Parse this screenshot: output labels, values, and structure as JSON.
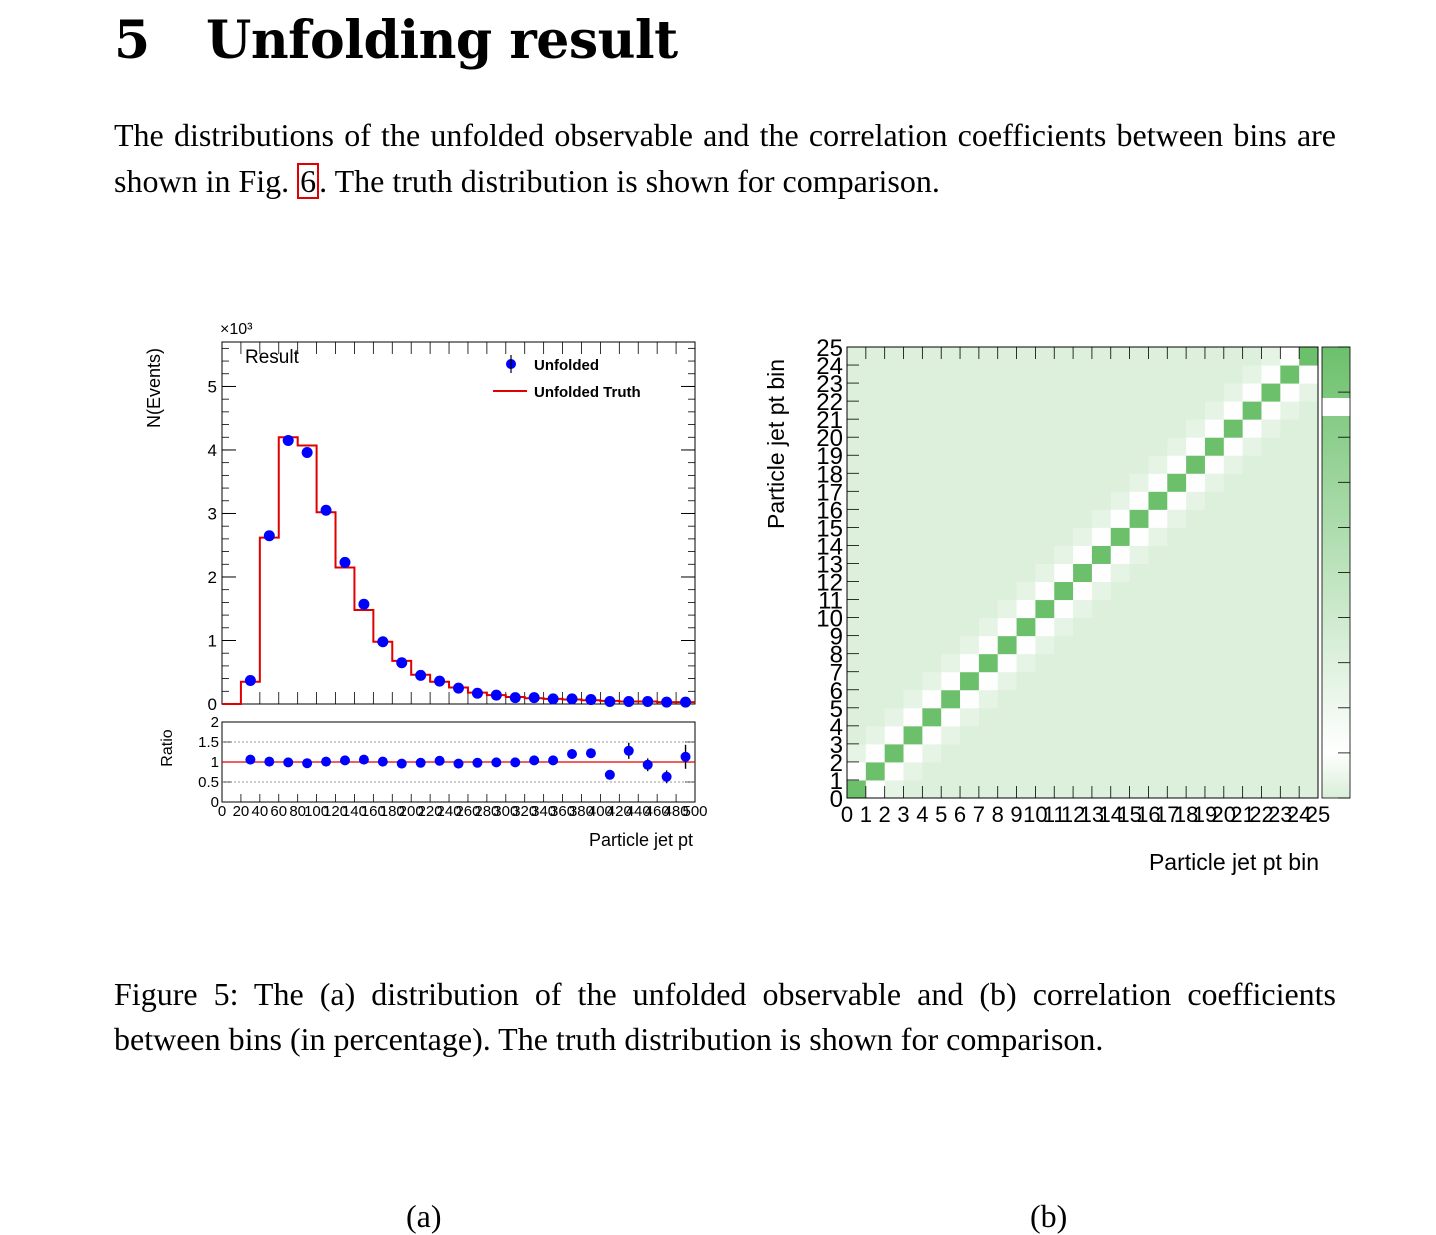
{
  "section": {
    "number": "5",
    "title": "Unfolding result"
  },
  "paragraph": {
    "before_ref": "The distributions of the unfolded observable and the correlation coefficients between bins are shown in Fig. ",
    "ref": "6",
    "after_ref": ". The truth distribution is shown for comparison."
  },
  "subcaptions": {
    "a": "(a)",
    "b": "(b)"
  },
  "caption": "Figure 5: The (a) distribution of the unfolded observable and (b) correlation coefficients between bins (in percentage). The truth distribution is shown for comparison.",
  "chart_data": [
    {
      "type": "line",
      "id": "distribution",
      "title": "Result",
      "ylabel": "N(Events)",
      "xlabel": "Particle jet pt",
      "y_multiplier_label": "×10³",
      "xlim": [
        0,
        500
      ],
      "ylim": [
        0,
        5.7
      ],
      "ytick_labels": [
        "0",
        "1",
        "2",
        "3",
        "4",
        "5"
      ],
      "xtick_labels": [
        "0",
        "20",
        "40",
        "60",
        "80",
        "100",
        "120",
        "140",
        "160",
        "180",
        "200",
        "220",
        "240",
        "260",
        "280",
        "300",
        "320",
        "340",
        "360",
        "380",
        "400",
        "420",
        "440",
        "460",
        "480",
        "500"
      ],
      "legend": [
        "Unfolded",
        "Unfolded Truth"
      ],
      "legend_position": "top-right",
      "bin_edges": [
        0,
        20,
        40,
        60,
        80,
        100,
        120,
        140,
        160,
        180,
        200,
        220,
        240,
        260,
        280,
        300,
        320,
        340,
        360,
        380,
        400,
        420,
        440,
        460,
        480,
        500
      ],
      "series": [
        {
          "name": "Unfolded",
          "values": [
            0,
            0.37,
            2.65,
            4.15,
            3.96,
            3.05,
            2.23,
            1.57,
            0.98,
            0.65,
            0.45,
            0.36,
            0.25,
            0.17,
            0.14,
            0.1,
            0.1,
            0.08,
            0.08,
            0.07,
            0.04,
            0.04,
            0.04,
            0.03,
            0.03
          ]
        },
        {
          "name": "Unfolded Truth",
          "values": [
            0,
            0.35,
            2.62,
            4.2,
            4.07,
            3.02,
            2.15,
            1.48,
            0.98,
            0.68,
            0.46,
            0.35,
            0.26,
            0.18,
            0.14,
            0.11,
            0.09,
            0.08,
            0.07,
            0.06,
            0.05,
            0.04,
            0.04,
            0.03,
            0.03
          ]
        }
      ]
    },
    {
      "type": "scatter",
      "id": "ratio",
      "ylabel": "Ratio",
      "ylim": [
        0,
        2
      ],
      "ytick_labels": [
        "0",
        "0.5",
        "1",
        "1.5",
        "2"
      ],
      "reference_line": 1,
      "series": [
        {
          "name": "Ratio",
          "values": [
            null,
            1.06,
            1.01,
            0.99,
            0.97,
            1.01,
            1.04,
            1.06,
            1.01,
            0.96,
            0.98,
            1.03,
            0.96,
            0.98,
            0.99,
            0.99,
            1.04,
            1.04,
            1.2,
            1.22,
            0.68,
            1.28,
            0.93,
            0.63,
            1.13
          ],
          "errors": [
            null,
            0.06,
            0.02,
            0.02,
            0.02,
            0.02,
            0.02,
            0.03,
            0.03,
            0.04,
            0.04,
            0.05,
            0.06,
            0.07,
            0.08,
            0.09,
            0.1,
            0.1,
            0.12,
            0.12,
            0.1,
            0.2,
            0.16,
            0.16,
            0.3
          ]
        }
      ]
    },
    {
      "type": "heatmap",
      "id": "correlation",
      "xlabel": "Particle jet pt bin",
      "ylabel": "Particle jet pt bin",
      "xtick_labels": [
        "0",
        "1",
        "2",
        "3",
        "4",
        "5",
        "6",
        "7",
        "8",
        "9",
        "10",
        "11",
        "12",
        "13",
        "14",
        "15",
        "16",
        "17",
        "18",
        "19",
        "20",
        "21",
        "22",
        "23",
        "24",
        "25"
      ],
      "ytick_labels": [
        "0",
        "1",
        "2",
        "3",
        "4",
        "5",
        "6",
        "7",
        "8",
        "9",
        "10",
        "11",
        "12",
        "13",
        "14",
        "15",
        "16",
        "17",
        "18",
        "19",
        "20",
        "21",
        "22",
        "23",
        "24",
        "25"
      ],
      "grid_size": 25,
      "colors": {
        "low": "#d8eed8",
        "mid": "#f6fbf6",
        "high": "#6cc06c"
      },
      "structure": "diagonal high, first off-diagonal lowest, broad background medium"
    }
  ]
}
